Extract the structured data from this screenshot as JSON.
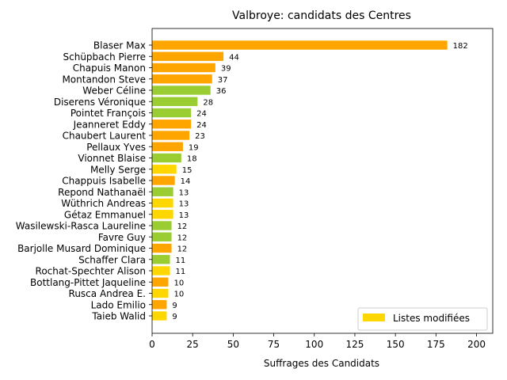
{
  "chart_data": {
    "type": "bar",
    "orientation": "horizontal",
    "title": "Valbroye: candidats des Centres",
    "xlabel": "Suffrages des Candidats",
    "ylabel": "",
    "xlim": [
      0,
      210
    ],
    "xticks": [
      0,
      25,
      50,
      75,
      100,
      125,
      150,
      175,
      200
    ],
    "grid": false,
    "legend": {
      "position": "bottom-right",
      "entries": [
        {
          "label": "Listes modifiées",
          "color": "#FFD700"
        }
      ]
    },
    "colors": {
      "orange": "#FFA500",
      "green": "#9ACD32",
      "yellow": "#FFD700"
    },
    "categories": [
      "Blaser Max",
      "Schüpbach Pierre",
      "Chapuis Manon",
      "Montandon Steve",
      "Weber Céline",
      "Diserens Véronique",
      "Pointet François",
      "Jeanneret Eddy",
      "Chaubert Laurent",
      "Pellaux Yves",
      "Vionnet Blaise",
      "Melly Serge",
      "Chappuis Isabelle",
      "Repond Nathanaël",
      "Wüthrich Andreas",
      "Gétaz Emmanuel",
      "Wasilewski-Rasca Laureline",
      "Favre Guy",
      "Barjolle Musard Dominique",
      "Schaffer Clara",
      "Rochat-Spechter Alison",
      "Bottlang-Pittet Jaqueline",
      "Rusca Andrea E.",
      "Lado Emilio",
      "Taieb Walid"
    ],
    "values": [
      182,
      44,
      39,
      37,
      36,
      28,
      24,
      24,
      23,
      19,
      18,
      15,
      14,
      13,
      13,
      13,
      12,
      12,
      12,
      11,
      11,
      10,
      10,
      9,
      9
    ],
    "bar_colors": [
      "orange",
      "orange",
      "orange",
      "orange",
      "green",
      "green",
      "green",
      "orange",
      "orange",
      "orange",
      "green",
      "yellow",
      "orange",
      "green",
      "yellow",
      "yellow",
      "green",
      "green",
      "orange",
      "green",
      "yellow",
      "orange",
      "yellow",
      "orange",
      "yellow"
    ]
  }
}
